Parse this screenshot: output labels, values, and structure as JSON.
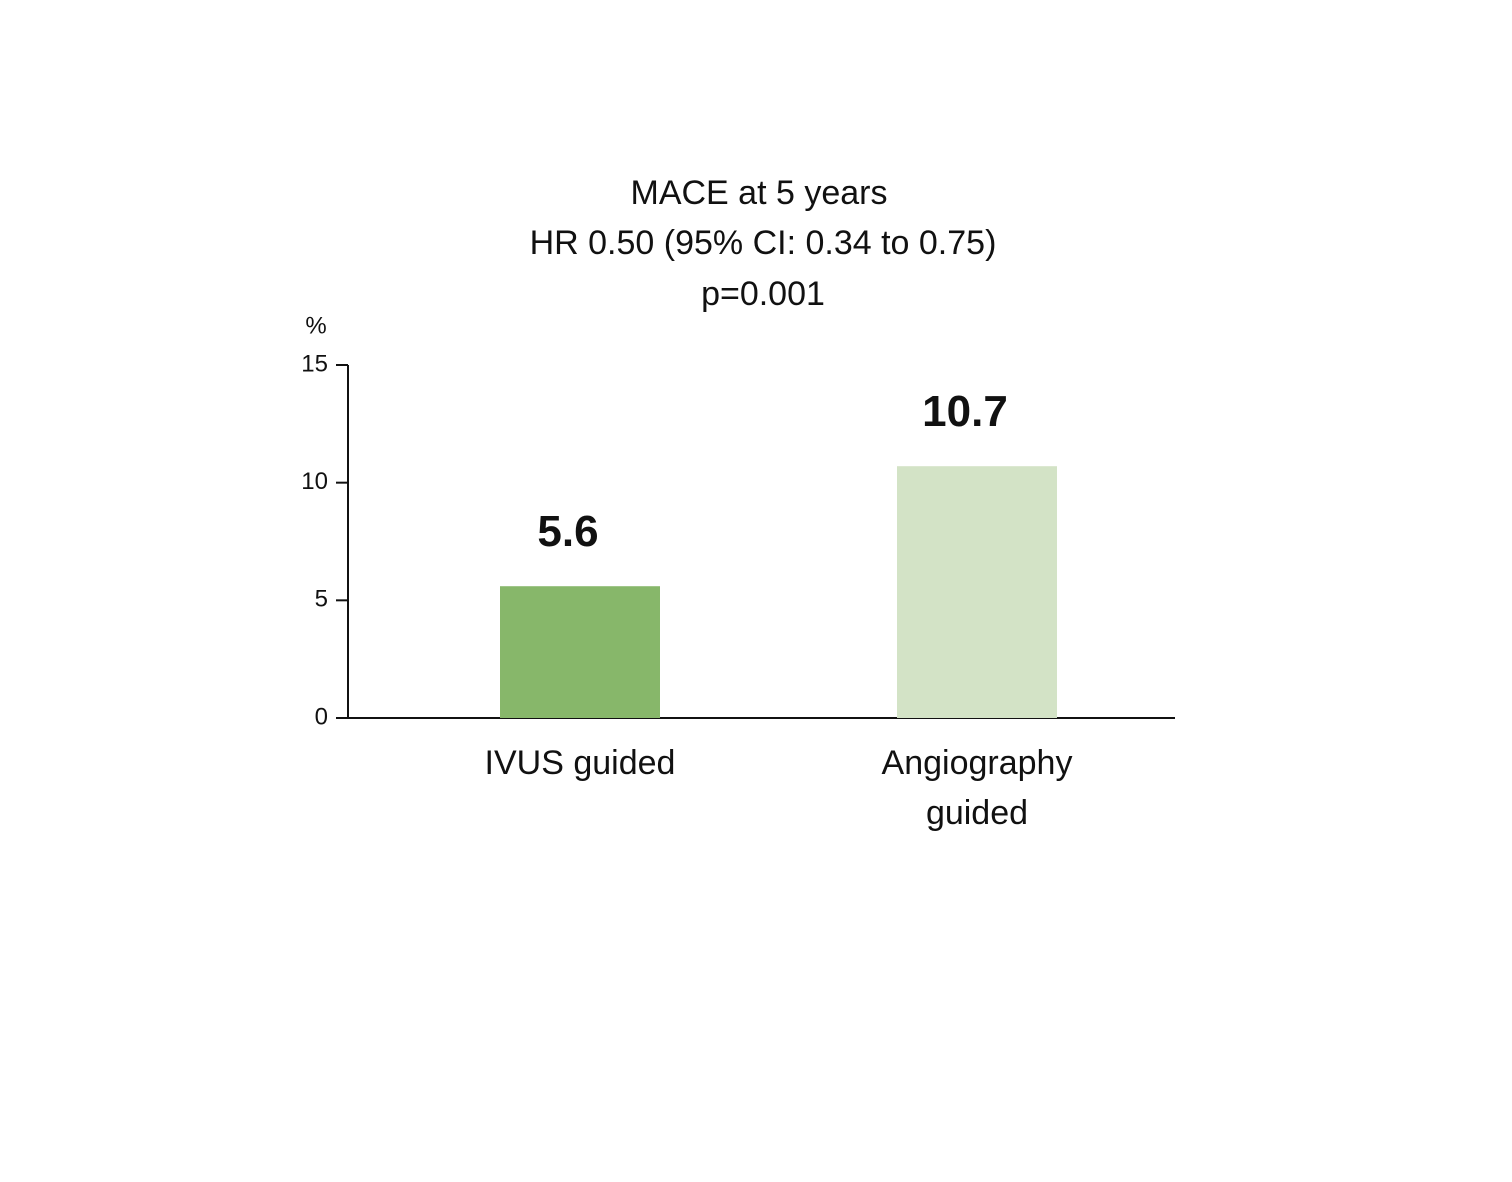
{
  "chart_data": {
    "type": "bar",
    "title": "MACE at 5 years",
    "subtitle": [
      "HR 0.50 (95% CI: 0.34 to 0.75)",
      "p=0.001"
    ],
    "y_label": "%",
    "categories": [
      "IVUS guided",
      "Angiography guided"
    ],
    "values": [
      5.6,
      10.7
    ],
    "colors": [
      "#87b76a",
      "#d3e3c6"
    ],
    "ylim": [
      0,
      15
    ],
    "yticks": [
      0,
      5,
      10,
      15
    ],
    "grid": false
  }
}
